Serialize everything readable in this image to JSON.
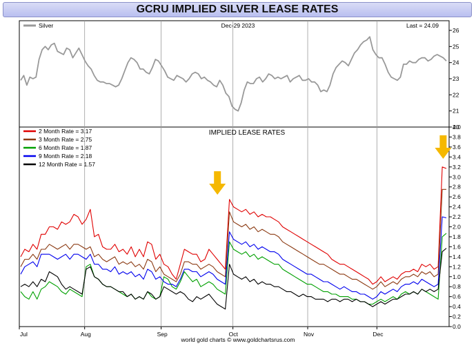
{
  "page_title": "GCRU IMPLIED SILVER LEASE RATES",
  "footer": "world gold charts © www.goldchartsrus.com",
  "colors": {
    "silver": "#999999",
    "m2": "#e00000",
    "m3": "#8b3a12",
    "m6": "#00a000",
    "m9": "#0000ee",
    "m12": "#000000",
    "arrow": "#f5b800"
  },
  "chart_data": [
    {
      "type": "line",
      "legend_label": "Silver",
      "date_label": "Dec-29  2023",
      "last_label": "Last = 24.09",
      "ylim": [
        20,
        26.6
      ],
      "yticks": [
        "20",
        "21",
        "22",
        "23",
        "24",
        "25",
        "26"
      ],
      "series": [
        {
          "name": "Silver",
          "color": "#999999",
          "values": [
            22.9,
            23.2,
            22.6,
            23.1,
            23.0,
            23.1,
            24.2,
            24.8,
            25.0,
            24.8,
            25.1,
            25.2,
            24.7,
            24.6,
            24.5,
            24.9,
            24.8,
            24.3,
            24.6,
            24.9,
            24.5,
            24.1,
            23.8,
            23.6,
            23.2,
            22.9,
            22.8,
            22.8,
            22.7,
            22.7,
            22.6,
            22.5,
            22.6,
            23.0,
            23.5,
            24.0,
            24.3,
            24.2,
            24.0,
            23.6,
            23.6,
            23.4,
            23.3,
            23.7,
            24.2,
            24.1,
            23.8,
            23.5,
            23.1,
            23.0,
            22.9,
            23.2,
            23.1,
            23.0,
            22.8,
            23.0,
            23.3,
            23.4,
            23.3,
            23.0,
            23.1,
            22.9,
            22.8,
            22.6,
            22.5,
            22.9,
            22.6,
            22.1,
            21.9,
            21.3,
            21.1,
            21.0,
            21.5,
            22.3,
            22.8,
            22.7,
            22.7,
            23.0,
            23.1,
            22.8,
            23.0,
            23.3,
            23.2,
            23.0,
            23.1,
            23.0,
            23.1,
            23.2,
            22.8,
            23.0,
            23.1,
            23.2,
            22.9,
            22.9,
            23.0,
            22.8,
            22.8,
            22.6,
            22.2,
            22.3,
            22.2,
            22.6,
            23.3,
            23.7,
            23.9,
            24.1,
            24.0,
            23.8,
            24.2,
            24.6,
            24.8,
            25.1,
            25.3,
            25.4,
            25.6,
            24.8,
            24.5,
            24.3,
            24.3,
            23.9,
            23.4,
            23.1,
            23.0,
            22.9,
            23.1,
            23.9,
            23.9,
            24.1,
            24.0,
            24.0,
            24.2,
            24.3,
            24.3,
            24.1,
            24.2,
            24.4,
            24.5,
            24.4,
            24.3,
            24.1
          ]
        }
      ]
    },
    {
      "type": "line",
      "title": "IMPLIED LEASE RATES",
      "ylim": [
        0,
        4
      ],
      "yticks": [
        "0.0",
        "0.2",
        "0.4",
        "0.6",
        "0.8",
        "1.0",
        "1.2",
        "1.4",
        "1.6",
        "1.8",
        "2.0",
        "2.2",
        "2.4",
        "2.6",
        "2.8",
        "3.0",
        "3.2",
        "3.4",
        "3.6",
        "3.8",
        "4.0"
      ],
      "x_labels": [
        "Jul",
        "Aug",
        "Sep",
        "Oct",
        "Nov",
        "Dec"
      ],
      "x_label_fractions": [
        0,
        0.152,
        0.33,
        0.497,
        0.671,
        0.832
      ],
      "arrows_at_fraction": [
        0.461,
        0.991
      ],
      "series": [
        {
          "name": "2 Month Rate",
          "legend": "2 Month Rate  = 3.17",
          "color": "#e00000",
          "values": [
            1.4,
            1.55,
            1.5,
            1.65,
            1.55,
            1.85,
            1.85,
            2.0,
            2.0,
            1.95,
            2.1,
            2.05,
            2.1,
            2.25,
            2.2,
            2.05,
            2.15,
            2.35,
            1.8,
            1.85,
            1.6,
            1.55,
            1.55,
            1.65,
            1.5,
            1.55,
            1.45,
            1.6,
            1.4,
            1.55,
            1.4,
            1.7,
            1.65,
            1.35,
            1.45,
            1.25,
            1.2,
            1.05,
            0.95,
            1.25,
            1.55,
            1.5,
            1.45,
            1.45,
            1.3,
            1.35,
            1.55,
            1.45,
            1.35,
            1.25,
            1.15,
            2.55,
            2.4,
            2.35,
            2.3,
            2.35,
            2.25,
            2.3,
            2.2,
            2.25,
            2.2,
            2.2,
            2.15,
            2.1,
            2.0,
            1.95,
            1.9,
            1.85,
            1.8,
            1.75,
            1.7,
            1.65,
            1.6,
            1.55,
            1.5,
            1.45,
            1.35,
            1.3,
            1.25,
            1.25,
            1.2,
            1.15,
            1.1,
            1.05,
            1.0,
            0.95,
            0.85,
            0.9,
            1.0,
            0.9,
            0.95,
            1.0,
            0.95,
            1.05,
            1.1,
            1.1,
            1.15,
            1.1,
            1.25,
            1.2,
            1.25,
            1.15,
            1.2,
            3.2,
            3.17
          ]
        },
        {
          "name": "3 Month Rate",
          "legend": "3 Month Rate  = 2.75",
          "color": "#8b3a12",
          "values": [
            1.2,
            1.35,
            1.35,
            1.45,
            1.35,
            1.55,
            1.55,
            1.65,
            1.6,
            1.55,
            1.6,
            1.65,
            1.55,
            1.65,
            1.65,
            1.6,
            1.55,
            1.6,
            1.4,
            1.45,
            1.35,
            1.3,
            1.35,
            1.4,
            1.25,
            1.3,
            1.25,
            1.3,
            1.2,
            1.25,
            1.15,
            1.35,
            1.3,
            1.1,
            1.2,
            1.05,
            1.0,
            0.95,
            0.9,
            1.05,
            1.3,
            1.3,
            1.25,
            1.25,
            1.15,
            1.2,
            1.25,
            1.2,
            1.1,
            1.05,
            1.0,
            2.3,
            2.1,
            2.05,
            2.0,
            2.05,
            1.95,
            2.0,
            1.9,
            1.95,
            1.9,
            1.85,
            1.85,
            1.8,
            1.7,
            1.65,
            1.6,
            1.55,
            1.5,
            1.45,
            1.4,
            1.35,
            1.3,
            1.25,
            1.25,
            1.2,
            1.15,
            1.1,
            1.05,
            1.05,
            1.0,
            0.95,
            0.95,
            0.9,
            0.85,
            0.8,
            0.75,
            0.8,
            0.9,
            0.8,
            0.85,
            0.9,
            0.85,
            0.95,
            1.0,
            1.0,
            1.05,
            1.0,
            1.1,
            1.05,
            1.1,
            1.0,
            1.05,
            2.75,
            2.75
          ]
        },
        {
          "name": "6 Month Rate",
          "legend": "6 Month Rate  = 1.87",
          "color": "#00a000",
          "values": [
            0.7,
            0.6,
            0.55,
            0.7,
            0.55,
            0.75,
            0.8,
            0.9,
            0.85,
            0.8,
            0.7,
            0.65,
            0.75,
            0.7,
            0.65,
            0.6,
            1.2,
            1.25,
            1.0,
            0.95,
            0.85,
            0.8,
            0.8,
            0.75,
            0.7,
            0.65,
            0.6,
            0.65,
            0.55,
            0.6,
            0.55,
            0.7,
            0.6,
            0.55,
            0.6,
            1.0,
            0.95,
            0.8,
            0.75,
            0.9,
            1.1,
            1.0,
            0.9,
            0.95,
            0.8,
            0.85,
            0.9,
            0.85,
            0.75,
            0.7,
            0.65,
            1.7,
            1.55,
            1.5,
            1.45,
            1.5,
            1.4,
            1.45,
            1.35,
            1.4,
            1.35,
            1.3,
            1.25,
            1.25,
            1.15,
            1.1,
            1.05,
            1.0,
            0.95,
            0.9,
            0.85,
            0.85,
            0.8,
            0.75,
            0.7,
            0.7,
            0.65,
            0.65,
            0.6,
            0.6,
            0.6,
            0.55,
            0.55,
            0.5,
            0.5,
            0.45,
            0.45,
            0.5,
            0.55,
            0.5,
            0.55,
            0.6,
            0.55,
            0.65,
            0.7,
            0.65,
            0.7,
            0.65,
            0.75,
            0.7,
            0.65,
            0.6,
            0.55,
            1.8,
            1.87
          ]
        },
        {
          "name": "9 Month Rate",
          "legend": "9 Month Rate  = 2.18",
          "color": "#0000ee",
          "values": [
            1.05,
            1.2,
            1.25,
            1.3,
            1.2,
            1.45,
            1.45,
            1.45,
            1.4,
            1.35,
            1.4,
            1.45,
            1.35,
            1.45,
            1.45,
            1.4,
            1.35,
            1.45,
            1.25,
            1.25,
            1.15,
            1.15,
            1.1,
            1.2,
            1.05,
            1.1,
            1.05,
            1.1,
            1.0,
            1.05,
            0.95,
            1.15,
            1.1,
            0.95,
            1.0,
            0.9,
            0.85,
            0.85,
            0.8,
            0.95,
            1.15,
            1.15,
            1.1,
            1.1,
            1.0,
            1.05,
            1.1,
            1.05,
            0.95,
            0.9,
            0.85,
            1.9,
            1.75,
            1.7,
            1.65,
            1.7,
            1.6,
            1.65,
            1.55,
            1.6,
            1.55,
            1.5,
            1.5,
            1.45,
            1.35,
            1.3,
            1.25,
            1.2,
            1.15,
            1.1,
            1.05,
            1.05,
            1.0,
            0.95,
            0.9,
            0.9,
            0.85,
            0.8,
            0.75,
            0.8,
            0.75,
            0.7,
            0.7,
            0.65,
            0.65,
            0.6,
            0.55,
            0.6,
            0.7,
            0.65,
            0.7,
            0.75,
            0.7,
            0.8,
            0.85,
            0.85,
            0.9,
            0.85,
            0.95,
            0.9,
            0.85,
            0.8,
            0.85,
            2.2,
            2.18
          ]
        },
        {
          "name": "12 Month Rate",
          "legend": "12 Month Rate  = 1.57",
          "color": "#000000",
          "values": [
            0.8,
            0.85,
            0.8,
            0.9,
            0.8,
            0.95,
            0.9,
            1.1,
            1.05,
            1.0,
            0.85,
            0.75,
            0.8,
            0.75,
            0.7,
            0.65,
            1.15,
            1.2,
            1.0,
            0.95,
            0.85,
            0.8,
            0.8,
            0.75,
            0.7,
            0.7,
            0.6,
            0.65,
            0.55,
            0.6,
            0.55,
            0.7,
            0.65,
            0.55,
            0.6,
            0.8,
            0.75,
            0.7,
            0.65,
            0.7,
            0.65,
            0.55,
            0.5,
            0.6,
            0.55,
            0.6,
            0.65,
            0.55,
            0.45,
            0.4,
            0.35,
            1.25,
            1.05,
            1.0,
            0.95,
            1.0,
            0.9,
            0.95,
            0.85,
            0.9,
            0.85,
            0.85,
            0.8,
            0.8,
            0.75,
            0.7,
            0.7,
            0.65,
            0.6,
            0.65,
            0.6,
            0.6,
            0.55,
            0.55,
            0.55,
            0.5,
            0.55,
            0.55,
            0.5,
            0.55,
            0.55,
            0.5,
            0.55,
            0.5,
            0.5,
            0.45,
            0.4,
            0.45,
            0.5,
            0.45,
            0.5,
            0.55,
            0.55,
            0.6,
            0.65,
            0.65,
            0.7,
            0.65,
            0.75,
            0.7,
            0.75,
            0.7,
            0.75,
            1.5,
            1.57
          ]
        }
      ]
    }
  ]
}
